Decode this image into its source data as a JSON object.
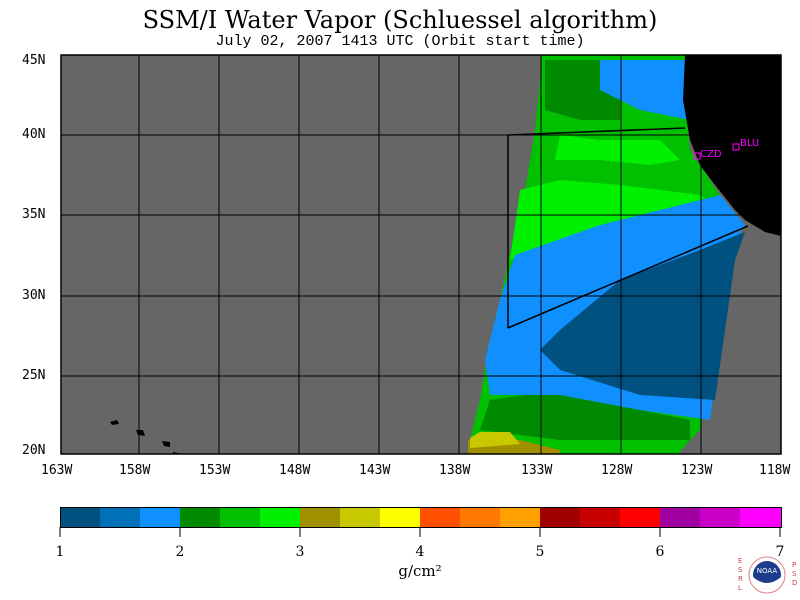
{
  "title": "SSM/I Water Vapor (Schluessel algorithm)",
  "subtitle": "July 02, 2007  1413 UTC  (Orbit start time)",
  "map": {
    "lon_labels": [
      "163W",
      "158W",
      "153W",
      "148W",
      "143W",
      "138W",
      "133W",
      "128W",
      "123W",
      "118W"
    ],
    "lat_labels": [
      "45N",
      "40N",
      "35N",
      "30N",
      "25N",
      "20N"
    ],
    "stations": [
      {
        "id": "CZD"
      },
      {
        "id": "BLU"
      }
    ],
    "colors": {
      "no_data": "#666666",
      "land": "#000000",
      "station_marker": "#ff00ff"
    }
  },
  "colorbar": {
    "colors": [
      "#005080",
      "#0070b8",
      "#1090ff",
      "#008a00",
      "#00c000",
      "#00f000",
      "#a09000",
      "#c8c800",
      "#ffff00",
      "#ff5000",
      "#ff7800",
      "#ffa000",
      "#a00000",
      "#c80000",
      "#ff0000",
      "#a000a0",
      "#c800c8",
      "#ff00ff"
    ],
    "tick_labels": [
      "1",
      "2",
      "3",
      "4",
      "5",
      "6",
      "7"
    ],
    "unit": "g/cm²"
  },
  "logo": {
    "left_letters": "ESRL",
    "right_letters": "PSD",
    "center_text": "NOAA"
  }
}
